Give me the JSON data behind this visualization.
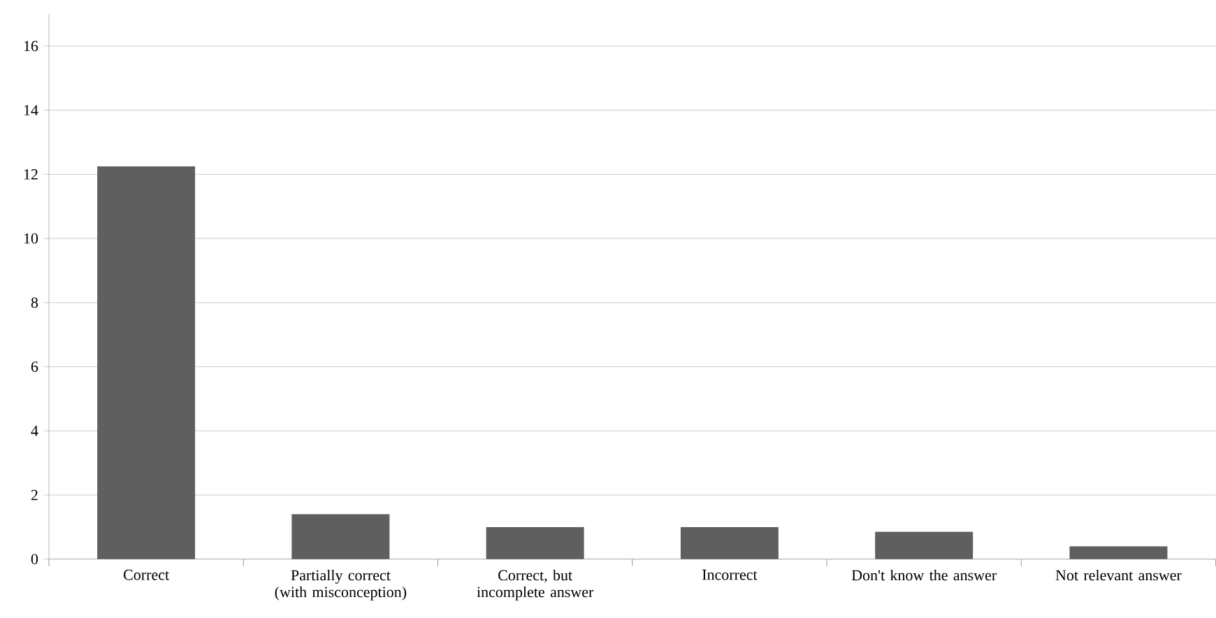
{
  "chart_data": {
    "type": "bar",
    "categories": [
      "Correct",
      "Partially correct (with misconception)",
      "Correct, but incomplete answer",
      "Incorrect",
      "Don't know the answer",
      "Not relevant answer"
    ],
    "values": [
      12.25,
      1.4,
      1.0,
      1.0,
      0.85,
      0.4
    ],
    "color": "#5f5f5f",
    "ylim": [
      0,
      17
    ],
    "yticks": [
      0,
      2,
      4,
      6,
      8,
      10,
      12,
      14,
      16
    ],
    "grid": "y"
  }
}
